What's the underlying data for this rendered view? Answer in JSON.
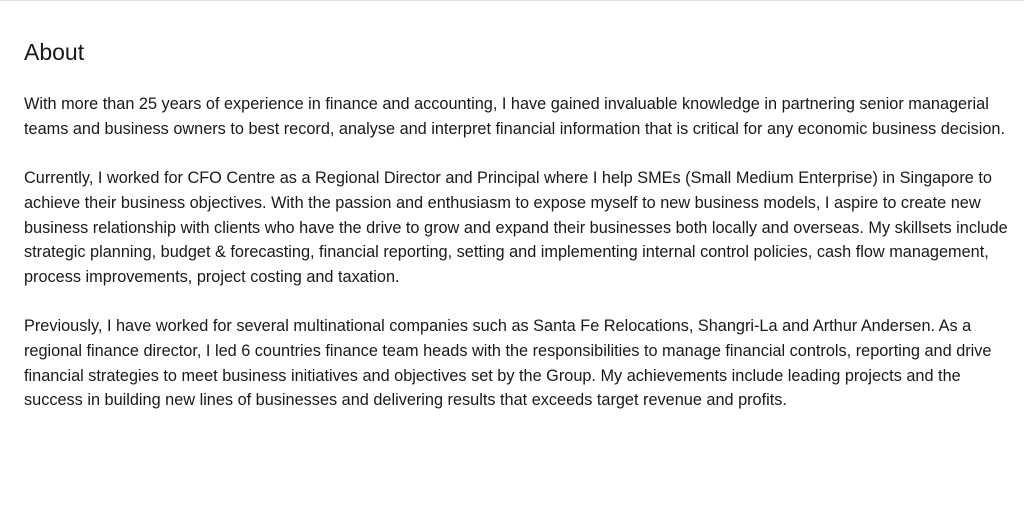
{
  "about": {
    "title": "About",
    "paragraphs": [
      "With more than 25 years of experience in finance and accounting, I have gained invaluable knowledge in partnering senior managerial teams and business owners to best record, analyse and interpret financial information that is critical for any economic business decision.",
      "Currently, I worked for CFO Centre as a Regional Director and Principal where I help SMEs (Small Medium Enterprise) in Singapore to achieve their business objectives. With the passion and enthusiasm to expose myself to new business models, I aspire to create new business relationship with clients who have the drive to grow and expand their businesses both locally and overseas. My skillsets include strategic planning, budget & forecasting, financial reporting, setting and implementing internal control policies, cash flow management, process improvements, project costing and taxation.",
      "Previously, I have worked for several multinational companies such as Santa Fe Relocations, Shangri-La and Arthur Andersen. As a regional finance director, I led 6 countries finance team heads with the responsibilities to manage financial controls, reporting and drive financial strategies to meet business initiatives and objectives set by the Group. My achievements include leading projects and the success in building new lines of businesses and delivering results that exceeds target revenue and profits."
    ]
  }
}
